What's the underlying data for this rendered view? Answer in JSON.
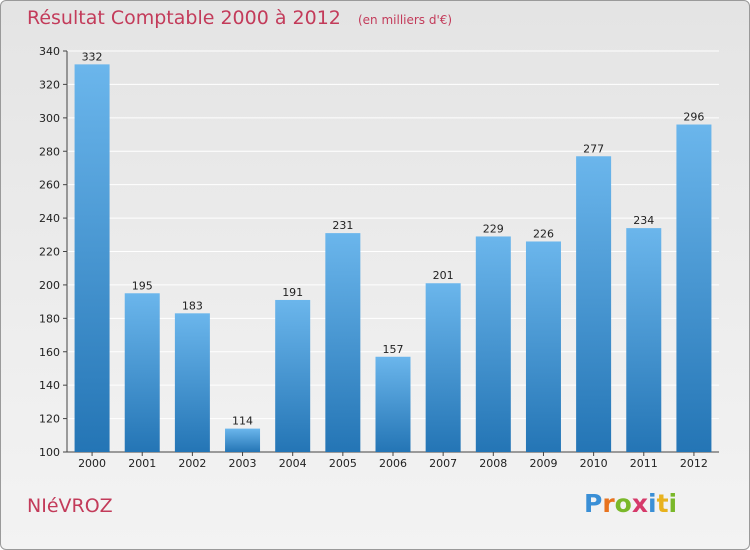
{
  "header": {
    "title": "Résultat Comptable 2000 à 2012",
    "subtitle": "(en milliers d'€)"
  },
  "footer": {
    "commune": "NIéVROZ",
    "logo_letters": [
      "P",
      "r",
      "o",
      "x",
      "i",
      "t",
      "i"
    ],
    "logo_colors": [
      "#3a8fd6",
      "#e8731e",
      "#7ab82a",
      "#d63a6a",
      "#3a8fd6",
      "#e8b21e",
      "#7ab82a"
    ]
  },
  "colors": {
    "bar_light": "#6bb6ec",
    "bar_dark": "#2475b5",
    "title": "#c33b5a",
    "grid": "#ffffff"
  },
  "chart_data": {
    "type": "bar",
    "categories": [
      "2000",
      "2001",
      "2002",
      "2003",
      "2004",
      "2005",
      "2006",
      "2007",
      "2008",
      "2009",
      "2010",
      "2011",
      "2012"
    ],
    "values": [
      332,
      195,
      183,
      114,
      191,
      231,
      157,
      201,
      229,
      226,
      277,
      234,
      296
    ],
    "ylim": [
      100,
      340
    ],
    "yticks": [
      100,
      120,
      140,
      160,
      180,
      200,
      220,
      240,
      260,
      280,
      300,
      320,
      340
    ],
    "grid": true,
    "data_labels": true
  }
}
